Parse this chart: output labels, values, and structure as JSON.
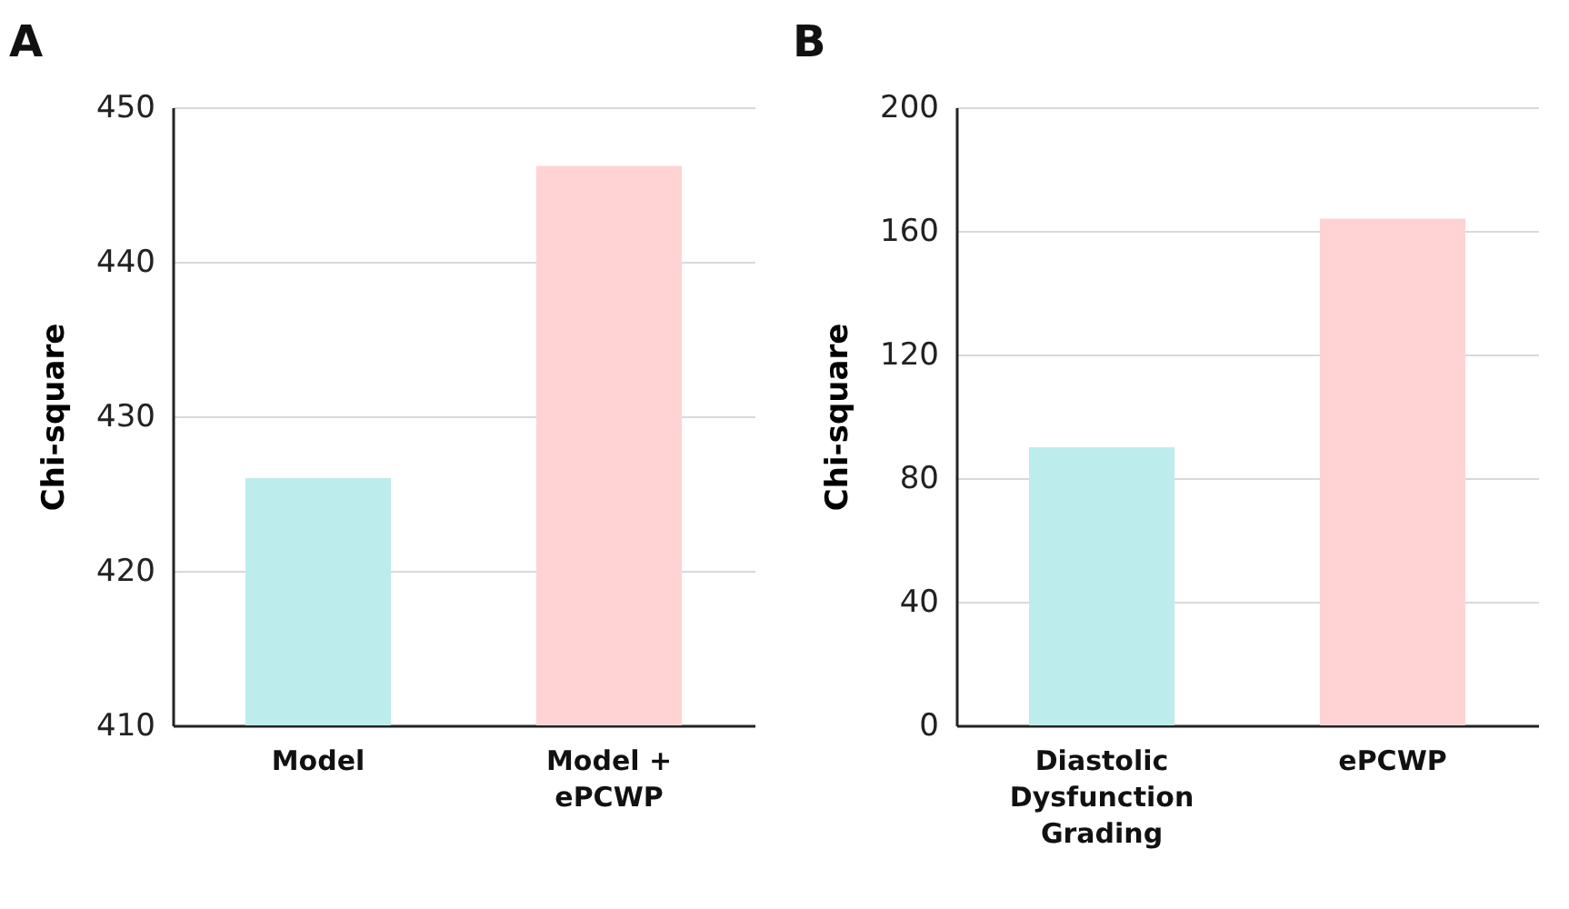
{
  "chart_data": [
    {
      "type": "bar",
      "title": "A",
      "ylabel": "Chi-square",
      "categories": [
        "Model",
        "Model + ePCWP"
      ],
      "values": [
        426,
        446.2
      ],
      "colors": [
        "#bdecec",
        "#ffd3d3"
      ],
      "ylim": [
        410,
        450
      ],
      "yticks": [
        410,
        420,
        430,
        440,
        450
      ],
      "grid": "y"
    },
    {
      "type": "bar",
      "title": "B",
      "ylabel": "Chi-square",
      "categories": [
        "Diastolic Dysfunction Grading",
        "ePCWP"
      ],
      "values": [
        90,
        164
      ],
      "colors": [
        "#bdecec",
        "#ffd3d3"
      ],
      "ylim": [
        0,
        200
      ],
      "yticks": [
        0,
        40,
        80,
        120,
        160,
        200
      ],
      "grid": "y"
    }
  ]
}
